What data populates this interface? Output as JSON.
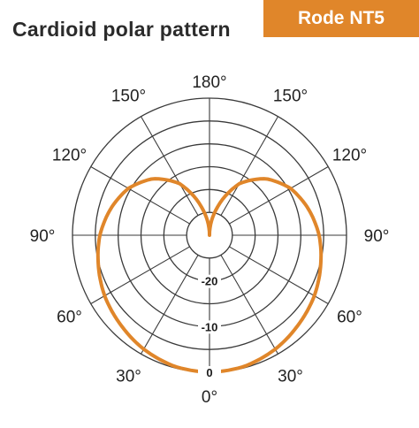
{
  "header": {
    "title": "Cardioid polar pattern",
    "badge": "Rode NT5"
  },
  "colors": {
    "accent": "#e0862a",
    "grid": "#3a3a3a",
    "text": "#222222"
  },
  "chart_data": {
    "type": "polar",
    "title": "Cardioid polar pattern",
    "orientation": "0° at bottom, 180° at top",
    "angle_labels": [
      {
        "text": "180°",
        "angle": 180,
        "side": "top"
      },
      {
        "text": "150°",
        "angle": 150,
        "side": "left"
      },
      {
        "text": "150°",
        "angle": 150,
        "side": "right"
      },
      {
        "text": "120°",
        "angle": 120,
        "side": "left"
      },
      {
        "text": "120°",
        "angle": 120,
        "side": "right"
      },
      {
        "text": "90°",
        "angle": 90,
        "side": "left"
      },
      {
        "text": "90°",
        "angle": 90,
        "side": "right"
      },
      {
        "text": "60°",
        "angle": 60,
        "side": "left"
      },
      {
        "text": "60°",
        "angle": 60,
        "side": "right"
      },
      {
        "text": "30°",
        "angle": 30,
        "side": "left"
      },
      {
        "text": "30°",
        "angle": 30,
        "side": "right"
      },
      {
        "text": "0°",
        "angle": 0,
        "side": "bottom"
      }
    ],
    "radial_labels": [
      {
        "text": "0",
        "db": 0
      },
      {
        "text": "-10",
        "db": -10
      },
      {
        "text": "-20",
        "db": -20
      }
    ],
    "radial_range_db": [
      -30,
      0
    ],
    "rings_db": [
      0,
      -5,
      -10,
      -15,
      -20,
      -25
    ],
    "spoke_angles": [
      0,
      30,
      60,
      90,
      120,
      150,
      180,
      210,
      240,
      270,
      300,
      330
    ],
    "series": [
      {
        "pattern": "cardioid",
        "angles": [
          0,
          15,
          30,
          45,
          60,
          75,
          90,
          105,
          120,
          135,
          150,
          165,
          180,
          195,
          210,
          225,
          240,
          255,
          270,
          285,
          300,
          315,
          330,
          345
        ],
        "values": [
          0,
          -0.3,
          -1.2,
          -2.4,
          -3.5,
          -4.8,
          -6,
          -7.6,
          -9.5,
          -12.5,
          -17,
          -24,
          -30,
          -24,
          -17,
          -12.5,
          -9.5,
          -7.6,
          -6,
          -4.8,
          -3.5,
          -2.4,
          -1.2,
          -0.3
        ]
      }
    ]
  }
}
